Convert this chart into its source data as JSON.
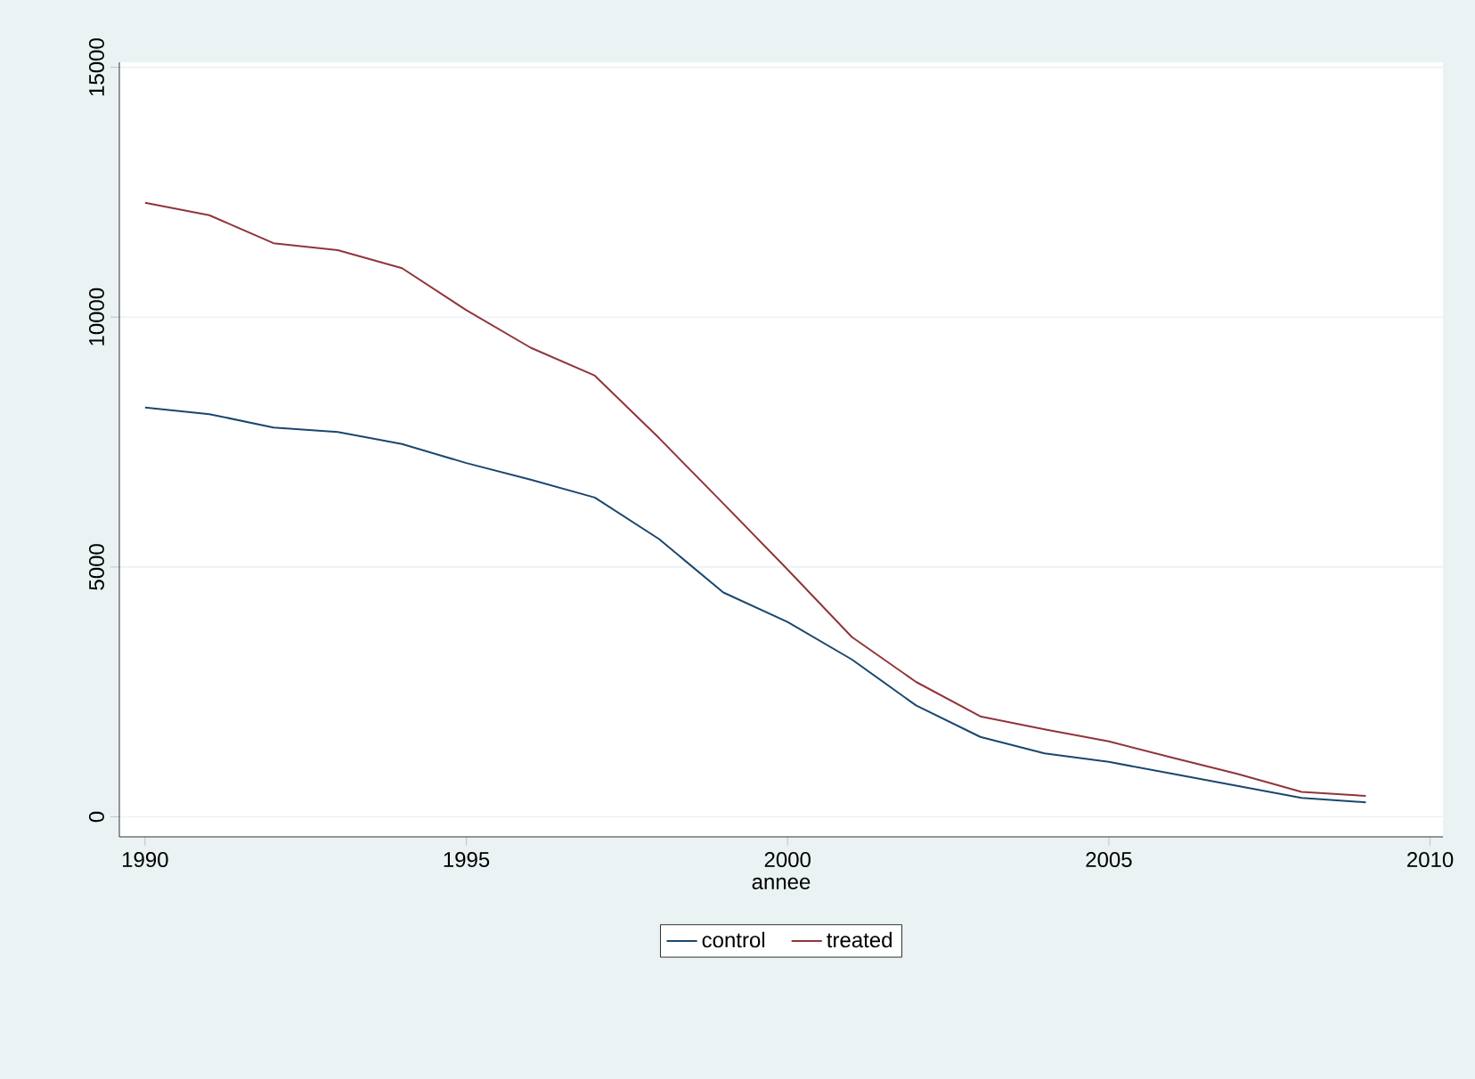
{
  "chart_data": {
    "type": "line",
    "xlabel": "annee",
    "x": [
      1990,
      1991,
      1992,
      1993,
      1994,
      1995,
      1996,
      1997,
      1998,
      1999,
      2000,
      2001,
      2002,
      2003,
      2004,
      2005,
      2006,
      2007,
      2008,
      2009
    ],
    "series": [
      {
        "name": "control",
        "color": "#1a476f",
        "values": [
          8190,
          8060,
          7790,
          7700,
          7460,
          7080,
          6750,
          6390,
          5560,
          4490,
          3900,
          3150,
          2230,
          1600,
          1270,
          1100,
          860,
          620,
          380,
          290
        ]
      },
      {
        "name": "treated",
        "color": "#90353b",
        "values": [
          12290,
          12040,
          11480,
          11340,
          10980,
          10140,
          9390,
          8830,
          7580,
          6270,
          4950,
          3600,
          2700,
          2010,
          1750,
          1510,
          1180,
          860,
          500,
          420
        ]
      }
    ],
    "xlim": [
      1989.6,
      2010.2
    ],
    "ylim": [
      -400,
      15100
    ],
    "xticks": [
      1990,
      1995,
      2000,
      2005,
      2010
    ],
    "yticks": [
      0,
      5000,
      10000,
      15000
    ],
    "grid": "y",
    "legend": "bottom",
    "marker": "none",
    "line_style": "solid"
  }
}
